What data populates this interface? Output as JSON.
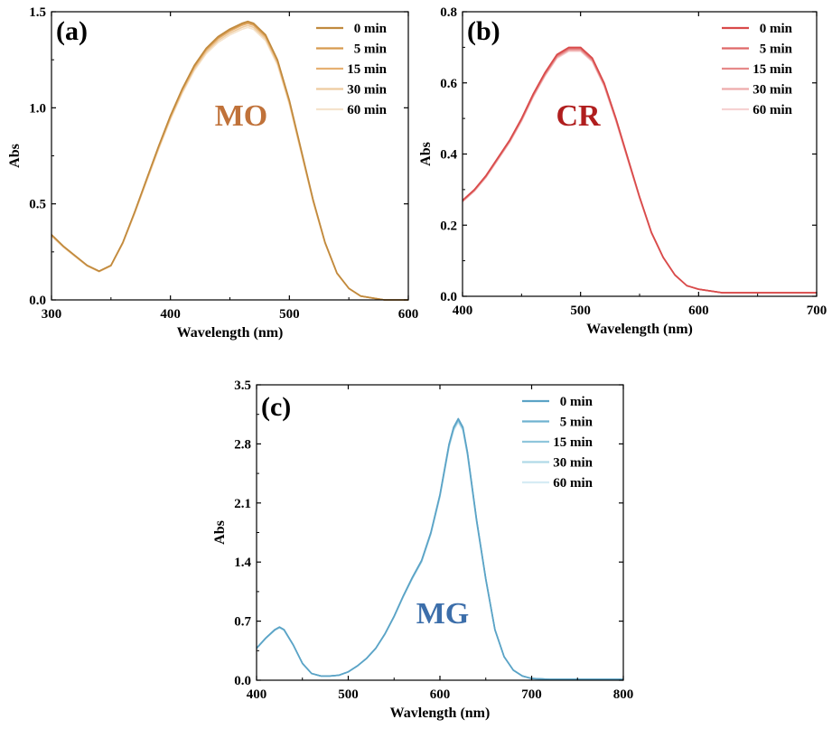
{
  "chart_data": [
    {
      "type": "line",
      "panel": "(a)",
      "annotation": "MO",
      "annotation_color": "#c0723a",
      "xlabel": "Wavelength (nm)",
      "ylabel": "Abs",
      "xlim": [
        300,
        600
      ],
      "ylim": [
        0,
        1.5
      ],
      "xticks": [
        300,
        400,
        500,
        600
      ],
      "yticks": [
        0.0,
        0.5,
        1.0,
        1.5
      ],
      "ytick_labels": [
        "0.0",
        "0.5",
        "1.0",
        "1.5"
      ],
      "legend_position": "top-right",
      "base_curve": {
        "x": [
          300,
          310,
          320,
          330,
          340,
          350,
          360,
          370,
          380,
          390,
          400,
          410,
          420,
          430,
          440,
          450,
          460,
          465,
          470,
          480,
          490,
          500,
          510,
          520,
          530,
          540,
          550,
          560,
          570,
          580,
          590,
          600
        ],
        "y": [
          0.34,
          0.28,
          0.23,
          0.18,
          0.15,
          0.18,
          0.3,
          0.46,
          0.63,
          0.8,
          0.96,
          1.1,
          1.22,
          1.31,
          1.37,
          1.41,
          1.44,
          1.45,
          1.44,
          1.38,
          1.25,
          1.04,
          0.78,
          0.52,
          0.3,
          0.14,
          0.06,
          0.02,
          0.01,
          0.0,
          0.0,
          0.0
        ]
      },
      "series": [
        {
          "name": "0 min",
          "color": "#c08a3e",
          "scale": 1.0
        },
        {
          "name": "5 min",
          "color": "#d69b4f",
          "scale": 0.996
        },
        {
          "name": "15 min",
          "color": "#e6b173",
          "scale": 0.992
        },
        {
          "name": "30 min",
          "color": "#eecb9f",
          "scale": 0.985
        },
        {
          "name": "60 min",
          "color": "#f5e3cc",
          "scale": 0.978
        }
      ]
    },
    {
      "type": "line",
      "panel": "(b)",
      "annotation": "CR",
      "annotation_color": "#b01e1e",
      "xlabel": "Wavelength (nm)",
      "ylabel": "Abs",
      "xlim": [
        400,
        700
      ],
      "ylim": [
        0,
        0.8
      ],
      "xticks": [
        400,
        500,
        600,
        700
      ],
      "yticks": [
        0.0,
        0.2,
        0.4,
        0.6,
        0.8
      ],
      "ytick_labels": [
        "0.0",
        "0.2",
        "0.4",
        "0.6",
        "0.8"
      ],
      "legend_position": "top-right",
      "base_curve": {
        "x": [
          400,
          410,
          420,
          430,
          440,
          450,
          460,
          470,
          480,
          490,
          500,
          510,
          520,
          530,
          540,
          550,
          560,
          570,
          580,
          590,
          600,
          620,
          640,
          660,
          680,
          700
        ],
        "y": [
          0.27,
          0.3,
          0.34,
          0.39,
          0.44,
          0.5,
          0.57,
          0.63,
          0.68,
          0.7,
          0.7,
          0.67,
          0.6,
          0.5,
          0.39,
          0.28,
          0.18,
          0.11,
          0.06,
          0.03,
          0.02,
          0.01,
          0.01,
          0.01,
          0.01,
          0.01
        ]
      },
      "series": [
        {
          "name": "0 min",
          "color": "#d94a4a",
          "scale": 1.0
        },
        {
          "name": "5 min",
          "color": "#df6868",
          "scale": 0.996
        },
        {
          "name": "15 min",
          "color": "#e68a8a",
          "scale": 0.992
        },
        {
          "name": "30 min",
          "color": "#eeabab",
          "scale": 0.988
        },
        {
          "name": "60 min",
          "color": "#f6d2d2",
          "scale": 0.984
        }
      ]
    },
    {
      "type": "line",
      "panel": "(c)",
      "annotation": "MG",
      "annotation_color": "#3c6eaa",
      "xlabel": "Wavlength (nm)",
      "ylabel": "Abs",
      "xlim": [
        400,
        800
      ],
      "ylim": [
        0,
        3.5
      ],
      "xticks": [
        400,
        500,
        600,
        700,
        800
      ],
      "yticks": [
        0.0,
        0.7,
        1.4,
        2.1,
        2.8,
        3.5
      ],
      "ytick_labels": [
        "0.0",
        "0.7",
        "1.4",
        "2.1",
        "2.8",
        "3.5"
      ],
      "legend_position": "top-right",
      "base_curve": {
        "x": [
          400,
          410,
          420,
          425,
          430,
          440,
          450,
          460,
          470,
          480,
          490,
          500,
          510,
          520,
          530,
          540,
          550,
          560,
          570,
          580,
          590,
          600,
          610,
          615,
          620,
          625,
          630,
          640,
          650,
          660,
          670,
          680,
          690,
          700,
          720,
          740,
          760,
          780,
          800
        ],
        "y": [
          0.38,
          0.5,
          0.6,
          0.63,
          0.6,
          0.42,
          0.2,
          0.08,
          0.05,
          0.05,
          0.06,
          0.1,
          0.17,
          0.26,
          0.38,
          0.55,
          0.76,
          1.0,
          1.22,
          1.42,
          1.75,
          2.2,
          2.8,
          3.0,
          3.1,
          3.0,
          2.7,
          1.9,
          1.2,
          0.6,
          0.28,
          0.12,
          0.05,
          0.02,
          0.01,
          0.01,
          0.01,
          0.01,
          0.01
        ]
      },
      "series": [
        {
          "name": "0 min",
          "color": "#5ba3c6",
          "scale": 1.0
        },
        {
          "name": "5 min",
          "color": "#6fb2d0",
          "scale": 0.997
        },
        {
          "name": "15 min",
          "color": "#8fc6dc",
          "scale": 0.994
        },
        {
          "name": "30 min",
          "color": "#b1d9e8",
          "scale": 0.99
        },
        {
          "name": "60 min",
          "color": "#d6ecf4",
          "scale": 0.986
        }
      ]
    }
  ]
}
